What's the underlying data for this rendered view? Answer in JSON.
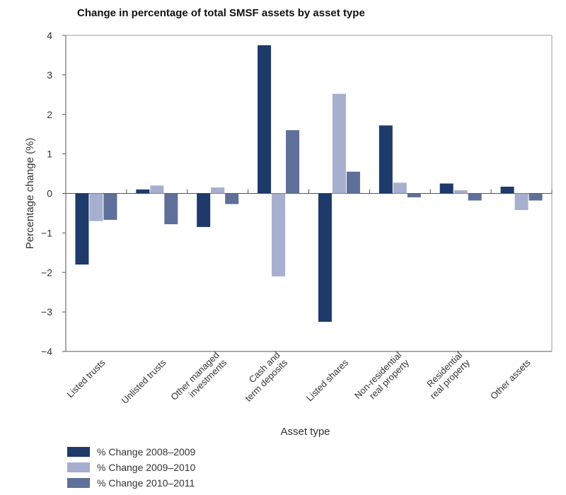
{
  "chart_data": {
    "type": "bar",
    "title": "Change in percentage of total SMSF assets by asset type",
    "xlabel": "Asset type",
    "ylabel": "Percentage change (%)",
    "ylim": [
      -4,
      4
    ],
    "yticks": [
      "−4",
      "−3",
      "−2",
      "−1",
      "0",
      "1",
      "2",
      "3",
      "4"
    ],
    "grid": false,
    "legend_position": "bottom-left",
    "categories": [
      [
        "Listed trusts"
      ],
      [
        "Unlisted trusts"
      ],
      [
        "Other managed",
        "investments"
      ],
      [
        "Cash and",
        "term deposits"
      ],
      [
        "Listed shares"
      ],
      [
        "Non-residential",
        "real property"
      ],
      [
        "Residential",
        "real property"
      ],
      [
        "Other assets"
      ]
    ],
    "series": [
      {
        "name": "% Change 2008–2009",
        "color": "#1d3a6b",
        "values": [
          -1.8,
          0.1,
          -0.85,
          3.75,
          -3.25,
          1.72,
          0.25,
          0.17
        ]
      },
      {
        "name": "% Change 2009–2010",
        "color": "#a6afcd",
        "values": [
          -0.7,
          0.2,
          0.15,
          -2.1,
          2.52,
          0.27,
          0.08,
          -0.42
        ]
      },
      {
        "name": "% Change 2010–2011",
        "color": "#5e7099",
        "values": [
          -0.67,
          -0.78,
          -0.27,
          1.6,
          0.55,
          -0.1,
          -0.18,
          -0.18
        ]
      }
    ]
  }
}
